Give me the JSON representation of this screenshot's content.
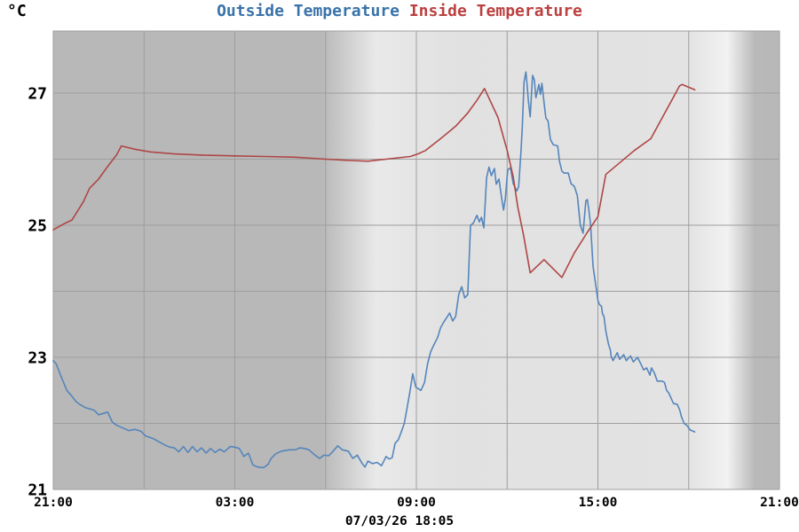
{
  "header": {
    "unit_label": "°C",
    "title_outside": "Outside Temperature",
    "title_inside": "Inside Temperature",
    "title_separator": " "
  },
  "footer": {
    "timestamp": "07/03/26 18:05"
  },
  "colors": {
    "page_bg": "#ffffff",
    "outside_line": "#5585bb",
    "inside_line": "#af4646",
    "outside_title": "#3973aa",
    "inside_title": "#bb4040",
    "grid": "#9e9e9e",
    "night_bg": "#b8b8b8",
    "day_bg": "#e1e1e1",
    "text": "#000000"
  },
  "chart_data": {
    "type": "line",
    "title": "Outside Temperature Inside Temperature",
    "ylabel": "°C",
    "xlabel": "",
    "grid": true,
    "legend_position": "top",
    "x_start_label": "21:00",
    "x_span_hours": 24,
    "x_gridline_step_hours": 3,
    "x_ticks": [
      {
        "hour": 0,
        "label": "21:00"
      },
      {
        "hour": 6,
        "label": "03:00"
      },
      {
        "hour": 12,
        "label": "09:00"
      },
      {
        "hour": 18,
        "label": "15:00"
      },
      {
        "hour": 24,
        "label": "21:00"
      }
    ],
    "y_min": 21,
    "y_max": 27.94,
    "y_gridlines": [
      21,
      22,
      23,
      24,
      25,
      26,
      27
    ],
    "y_ticks": [
      21,
      23,
      25,
      27
    ],
    "day_night_gradient_stops": [
      {
        "pos": 0.0,
        "color": "#b8b8b8"
      },
      {
        "pos": 0.37,
        "color": "#b8b8b8"
      },
      {
        "pos": 0.445,
        "color": "#e9e9e9"
      },
      {
        "pos": 0.55,
        "color": "#e1e1e1"
      },
      {
        "pos": 0.875,
        "color": "#e3e3e3"
      },
      {
        "pos": 0.928,
        "color": "#f2f2f2"
      },
      {
        "pos": 0.966,
        "color": "#b9b9b9"
      },
      {
        "pos": 1.0,
        "color": "#b8b8b8"
      }
    ],
    "series": [
      {
        "name": "Outside Temperature",
        "color": "#5585bb",
        "points": [
          [
            0.0,
            22.95
          ],
          [
            0.1,
            22.9
          ],
          [
            0.25,
            22.72
          ],
          [
            0.45,
            22.5
          ],
          [
            0.6,
            22.42
          ],
          [
            0.75,
            22.33
          ],
          [
            0.9,
            22.28
          ],
          [
            1.05,
            22.24
          ],
          [
            1.2,
            22.22
          ],
          [
            1.35,
            22.2
          ],
          [
            1.5,
            22.13
          ],
          [
            1.65,
            22.15
          ],
          [
            1.8,
            22.17
          ],
          [
            1.95,
            22.02
          ],
          [
            2.1,
            21.97
          ],
          [
            2.3,
            21.93
          ],
          [
            2.5,
            21.89
          ],
          [
            2.7,
            21.91
          ],
          [
            2.9,
            21.88
          ],
          [
            3.05,
            21.81
          ],
          [
            3.3,
            21.77
          ],
          [
            3.5,
            21.72
          ],
          [
            3.7,
            21.67
          ],
          [
            3.85,
            21.64
          ],
          [
            4.0,
            21.63
          ],
          [
            4.15,
            21.57
          ],
          [
            4.3,
            21.65
          ],
          [
            4.45,
            21.56
          ],
          [
            4.6,
            21.65
          ],
          [
            4.75,
            21.57
          ],
          [
            4.9,
            21.63
          ],
          [
            5.05,
            21.55
          ],
          [
            5.2,
            21.62
          ],
          [
            5.35,
            21.56
          ],
          [
            5.5,
            21.61
          ],
          [
            5.65,
            21.57
          ],
          [
            5.85,
            21.65
          ],
          [
            6.0,
            21.64
          ],
          [
            6.15,
            21.62
          ],
          [
            6.3,
            21.5
          ],
          [
            6.45,
            21.55
          ],
          [
            6.6,
            21.37
          ],
          [
            6.75,
            21.34
          ],
          [
            6.95,
            21.33
          ],
          [
            7.1,
            21.38
          ],
          [
            7.2,
            21.47
          ],
          [
            7.35,
            21.54
          ],
          [
            7.55,
            21.58
          ],
          [
            7.8,
            21.6
          ],
          [
            8.0,
            21.6
          ],
          [
            8.15,
            21.63
          ],
          [
            8.3,
            21.62
          ],
          [
            8.45,
            21.6
          ],
          [
            8.65,
            21.52
          ],
          [
            8.8,
            21.47
          ],
          [
            8.95,
            21.52
          ],
          [
            9.1,
            21.51
          ],
          [
            9.25,
            21.58
          ],
          [
            9.4,
            21.66
          ],
          [
            9.55,
            21.6
          ],
          [
            9.75,
            21.58
          ],
          [
            9.9,
            21.47
          ],
          [
            10.05,
            21.52
          ],
          [
            10.2,
            21.4
          ],
          [
            10.3,
            21.34
          ],
          [
            10.4,
            21.43
          ],
          [
            10.55,
            21.39
          ],
          [
            10.7,
            21.41
          ],
          [
            10.85,
            21.36
          ],
          [
            11.0,
            21.5
          ],
          [
            11.1,
            21.46
          ],
          [
            11.2,
            21.48
          ],
          [
            11.3,
            21.7
          ],
          [
            11.4,
            21.75
          ],
          [
            11.5,
            21.87
          ],
          [
            11.6,
            22.0
          ],
          [
            11.68,
            22.2
          ],
          [
            11.78,
            22.46
          ],
          [
            11.88,
            22.75
          ],
          [
            11.98,
            22.55
          ],
          [
            12.15,
            22.5
          ],
          [
            12.27,
            22.62
          ],
          [
            12.37,
            22.9
          ],
          [
            12.47,
            23.08
          ],
          [
            12.57,
            23.18
          ],
          [
            12.7,
            23.3
          ],
          [
            12.8,
            23.45
          ],
          [
            12.9,
            23.53
          ],
          [
            13.0,
            23.6
          ],
          [
            13.1,
            23.67
          ],
          [
            13.2,
            23.55
          ],
          [
            13.3,
            23.62
          ],
          [
            13.4,
            23.95
          ],
          [
            13.5,
            24.07
          ],
          [
            13.6,
            23.9
          ],
          [
            13.7,
            23.95
          ],
          [
            13.79,
            25.0
          ],
          [
            13.88,
            25.03
          ],
          [
            14.0,
            25.15
          ],
          [
            14.08,
            25.05
          ],
          [
            14.15,
            25.12
          ],
          [
            14.23,
            24.96
          ],
          [
            14.32,
            25.72
          ],
          [
            14.4,
            25.88
          ],
          [
            14.48,
            25.75
          ],
          [
            14.58,
            25.86
          ],
          [
            14.64,
            25.62
          ],
          [
            14.73,
            25.7
          ],
          [
            14.82,
            25.41
          ],
          [
            14.88,
            25.23
          ],
          [
            14.94,
            25.4
          ],
          [
            15.02,
            25.84
          ],
          [
            15.11,
            25.87
          ],
          [
            15.2,
            25.63
          ],
          [
            15.32,
            25.52
          ],
          [
            15.38,
            25.58
          ],
          [
            15.46,
            26.13
          ],
          [
            15.5,
            26.48
          ],
          [
            15.56,
            27.17
          ],
          [
            15.62,
            27.32
          ],
          [
            15.66,
            27.13
          ],
          [
            15.7,
            26.89
          ],
          [
            15.76,
            26.64
          ],
          [
            15.84,
            27.27
          ],
          [
            15.9,
            27.2
          ],
          [
            15.95,
            26.93
          ],
          [
            16.05,
            27.13
          ],
          [
            16.1,
            26.98
          ],
          [
            16.15,
            27.15
          ],
          [
            16.22,
            26.86
          ],
          [
            16.28,
            26.62
          ],
          [
            16.35,
            26.58
          ],
          [
            16.43,
            26.3
          ],
          [
            16.52,
            26.22
          ],
          [
            16.6,
            26.21
          ],
          [
            16.67,
            26.2
          ],
          [
            16.73,
            25.97
          ],
          [
            16.81,
            25.82
          ],
          [
            16.88,
            25.79
          ],
          [
            17.02,
            25.79
          ],
          [
            17.11,
            25.63
          ],
          [
            17.22,
            25.59
          ],
          [
            17.32,
            25.45
          ],
          [
            17.42,
            25.0
          ],
          [
            17.51,
            24.88
          ],
          [
            17.55,
            25.1
          ],
          [
            17.6,
            25.37
          ],
          [
            17.65,
            25.39
          ],
          [
            17.7,
            25.23
          ],
          [
            17.76,
            25.0
          ],
          [
            17.84,
            24.38
          ],
          [
            17.96,
            24.0
          ],
          [
            18.0,
            23.86
          ],
          [
            18.05,
            23.8
          ],
          [
            18.12,
            23.77
          ],
          [
            18.15,
            23.66
          ],
          [
            18.2,
            23.62
          ],
          [
            18.26,
            23.4
          ],
          [
            18.35,
            23.2
          ],
          [
            18.41,
            23.11
          ],
          [
            18.44,
            23.01
          ],
          [
            18.5,
            22.95
          ],
          [
            18.64,
            23.07
          ],
          [
            18.72,
            22.97
          ],
          [
            18.85,
            23.04
          ],
          [
            18.94,
            22.95
          ],
          [
            19.08,
            23.02
          ],
          [
            19.17,
            22.93
          ],
          [
            19.31,
            23.0
          ],
          [
            19.44,
            22.88
          ],
          [
            19.51,
            22.81
          ],
          [
            19.61,
            22.84
          ],
          [
            19.72,
            22.73
          ],
          [
            19.77,
            22.84
          ],
          [
            19.87,
            22.76
          ],
          [
            19.96,
            22.64
          ],
          [
            20.12,
            22.64
          ],
          [
            20.2,
            22.62
          ],
          [
            20.27,
            22.5
          ],
          [
            20.34,
            22.46
          ],
          [
            20.46,
            22.34
          ],
          [
            20.5,
            22.3
          ],
          [
            20.62,
            22.29
          ],
          [
            20.7,
            22.21
          ],
          [
            20.76,
            22.1
          ],
          [
            20.85,
            22.0
          ],
          [
            20.94,
            21.97
          ],
          [
            21.05,
            21.9
          ],
          [
            21.15,
            21.88
          ],
          [
            21.2,
            21.87
          ]
        ]
      },
      {
        "name": "Inside Temperature",
        "color": "#af4646",
        "points": [
          [
            0.0,
            24.93
          ],
          [
            0.35,
            25.02
          ],
          [
            0.62,
            25.08
          ],
          [
            1.0,
            25.36
          ],
          [
            1.2,
            25.56
          ],
          [
            1.5,
            25.7
          ],
          [
            1.8,
            25.89
          ],
          [
            2.1,
            26.07
          ],
          [
            2.25,
            26.2
          ],
          [
            2.7,
            26.15
          ],
          [
            3.2,
            26.11
          ],
          [
            4.0,
            26.08
          ],
          [
            5.0,
            26.06
          ],
          [
            6.0,
            26.05
          ],
          [
            7.0,
            26.04
          ],
          [
            8.0,
            26.03
          ],
          [
            9.0,
            26.0
          ],
          [
            9.8,
            25.98
          ],
          [
            10.4,
            25.97
          ],
          [
            11.0,
            26.0
          ],
          [
            11.8,
            26.04
          ],
          [
            12.05,
            26.08
          ],
          [
            12.3,
            26.13
          ],
          [
            12.8,
            26.31
          ],
          [
            13.3,
            26.5
          ],
          [
            13.7,
            26.7
          ],
          [
            14.0,
            26.89
          ],
          [
            14.25,
            27.07
          ],
          [
            14.7,
            26.63
          ],
          [
            15.0,
            26.13
          ],
          [
            15.2,
            25.73
          ],
          [
            15.35,
            25.28
          ],
          [
            15.55,
            24.83
          ],
          [
            15.76,
            24.28
          ],
          [
            16.22,
            24.48
          ],
          [
            16.81,
            24.21
          ],
          [
            17.22,
            24.58
          ],
          [
            17.66,
            24.9
          ],
          [
            18.0,
            25.13
          ],
          [
            18.26,
            25.77
          ],
          [
            19.2,
            26.13
          ],
          [
            19.75,
            26.31
          ],
          [
            20.7,
            27.11
          ],
          [
            20.78,
            27.13
          ],
          [
            21.2,
            27.05
          ]
        ]
      }
    ]
  }
}
